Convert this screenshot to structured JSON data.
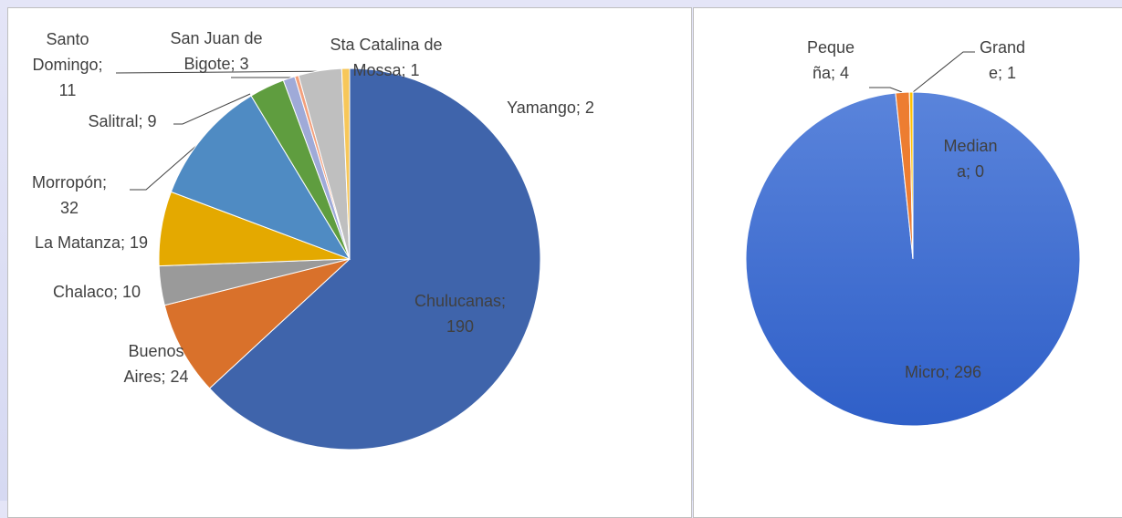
{
  "chart_data": [
    {
      "type": "pie",
      "categories": [
        "Chulucanas",
        "Buenos Aires",
        "Chalaco",
        "La Matanza",
        "Morropón",
        "Salitral",
        "San Juan de Bigote",
        "Sta Catalina de Mossa",
        "Santo Domingo",
        "Yamango"
      ],
      "values": [
        190,
        24,
        10,
        19,
        32,
        9,
        3,
        1,
        11,
        2
      ],
      "value_labels": [
        "Chulucanas; 190",
        "Buenos Aires; 24",
        "Chalaco; 10",
        "La Matanza; 19",
        "Morropón; 32",
        "Salitral; 9",
        "San Juan de Bigote; 3",
        "Sta Catalina de Mossa; 1",
        "Santo Domingo; 11",
        "Yamango; 2"
      ],
      "colors": [
        "#3f64ab",
        "#d9712b",
        "#9a9a9a",
        "#e4a900",
        "#4f8bc3",
        "#5f9d3f",
        "#9faad8",
        "#f3a07c",
        "#bfbfbf",
        "#f7c75a"
      ]
    },
    {
      "type": "pie",
      "categories": [
        "Micro",
        "Pequeña",
        "Mediana",
        "Grande"
      ],
      "values": [
        296,
        4,
        0,
        1
      ],
      "value_labels": [
        "Micro; 296",
        "Pequeña; 4",
        "Mediana; 0",
        "Grande; 1"
      ],
      "colors": [
        "#3c68cf",
        "#ed7d31",
        "#a5a5a5",
        "#ffc000"
      ]
    }
  ]
}
